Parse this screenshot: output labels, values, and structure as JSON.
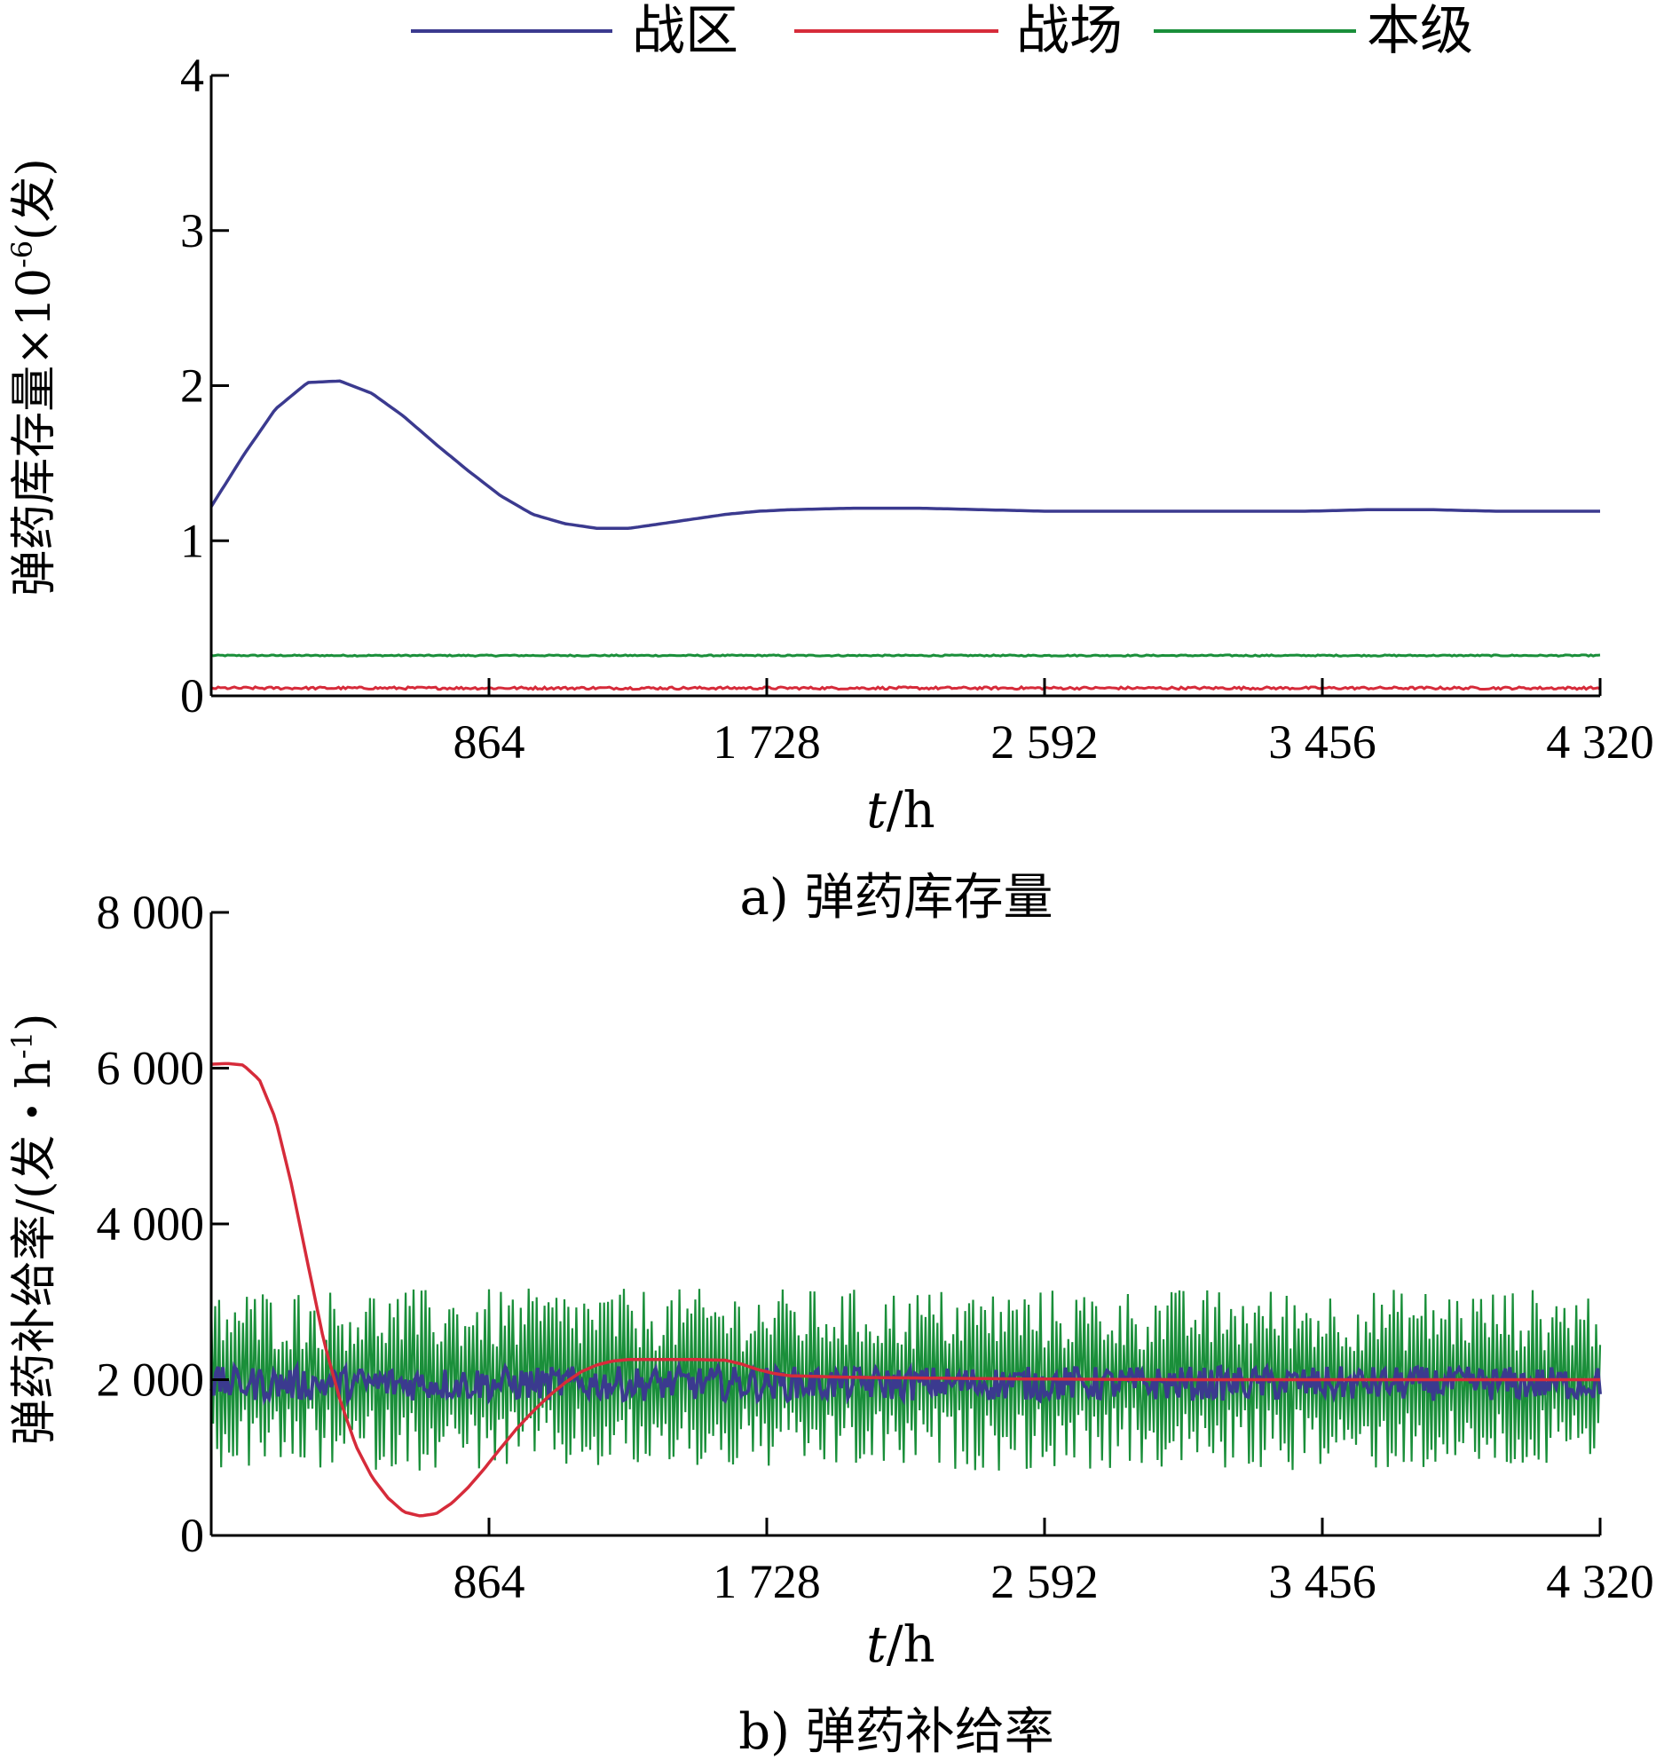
{
  "legend": [
    {
      "name": "战区",
      "color": "#3b3a8f"
    },
    {
      "name": "战场",
      "color": "#d62b3a"
    },
    {
      "name": "本级",
      "color": "#1a8f3a"
    }
  ],
  "chart_data": [
    {
      "type": "line",
      "caption": "a) 弹药库存量",
      "xlabel_var": "t",
      "xlabel_unit": "/h",
      "ylabel": "弹药库存量×10",
      "ylabel_exp": "-6",
      "ylabel_tail": "(发)",
      "xlim": [
        0,
        4320
      ],
      "ylim": [
        0,
        4
      ],
      "xticks": [
        864,
        1728,
        2592,
        3456,
        4320
      ],
      "xtick_labels": [
        "864",
        "1 728",
        "2 592",
        "3 456",
        "4 320"
      ],
      "yticks": [
        0,
        1,
        2,
        3,
        4
      ],
      "ytick_labels": [
        "0",
        "1",
        "2",
        "3",
        "4"
      ],
      "series": [
        {
          "name": "战区",
          "x": [
            0,
            100,
            200,
            300,
            400,
            500,
            600,
            700,
            800,
            900,
            1000,
            1100,
            1200,
            1300,
            1400,
            1500,
            1600,
            1700,
            1800,
            2000,
            2200,
            2400,
            2600,
            2800,
            3000,
            3200,
            3400,
            3600,
            3800,
            4000,
            4320
          ],
          "y": [
            1.22,
            1.55,
            1.85,
            2.02,
            2.03,
            1.95,
            1.8,
            1.62,
            1.45,
            1.29,
            1.17,
            1.11,
            1.08,
            1.08,
            1.11,
            1.14,
            1.17,
            1.19,
            1.2,
            1.21,
            1.21,
            1.2,
            1.19,
            1.19,
            1.19,
            1.19,
            1.19,
            1.2,
            1.2,
            1.19,
            1.19
          ]
        },
        {
          "name": "战场",
          "x": [
            0,
            4320
          ],
          "y": [
            0.05,
            0.05
          ]
        },
        {
          "name": "本级",
          "x": [
            0,
            4320
          ],
          "y": [
            0.26,
            0.26
          ]
        }
      ]
    },
    {
      "type": "line",
      "caption": "b) 弹药补给率",
      "xlabel_var": "t",
      "xlabel_unit": "/h",
      "ylabel": "弹药补给率/(发・h",
      "ylabel_exp": "-1",
      "ylabel_tail": ")",
      "xlim": [
        0,
        4320
      ],
      "ylim": [
        0,
        8000
      ],
      "xticks": [
        864,
        1728,
        2592,
        3456,
        4320
      ],
      "xtick_labels": [
        "864",
        "1 728",
        "2 592",
        "3 456",
        "4 320"
      ],
      "yticks": [
        0,
        2000,
        4000,
        6000,
        8000
      ],
      "ytick_labels": [
        "0",
        "2 000",
        "4 000",
        "6 000",
        "8 000"
      ],
      "series": [
        {
          "name": "战区",
          "x": [
            0,
            4320
          ],
          "y": [
            1950,
            1950
          ]
        },
        {
          "name": "战场",
          "x": [
            0,
            50,
            100,
            150,
            200,
            250,
            300,
            350,
            400,
            450,
            500,
            550,
            600,
            650,
            700,
            750,
            800,
            850,
            900,
            950,
            1000,
            1050,
            1100,
            1150,
            1200,
            1250,
            1300,
            1400,
            1500,
            1600,
            1650,
            1700,
            1750,
            1800,
            2000,
            2500,
            3000,
            3500,
            4000,
            4320
          ],
          "y": [
            6050,
            6060,
            6040,
            5850,
            5350,
            4500,
            3500,
            2500,
            1750,
            1150,
            750,
            480,
            300,
            250,
            280,
            420,
            620,
            860,
            1120,
            1370,
            1590,
            1790,
            1960,
            2100,
            2190,
            2240,
            2260,
            2260,
            2260,
            2250,
            2200,
            2130,
            2080,
            2050,
            2030,
            2010,
            2000,
            2000,
            2000,
            2000
          ]
        },
        {
          "name": "本级",
          "x": [
            0,
            4320
          ],
          "y": [
            2000,
            2000
          ],
          "spread": 900
        }
      ]
    }
  ]
}
